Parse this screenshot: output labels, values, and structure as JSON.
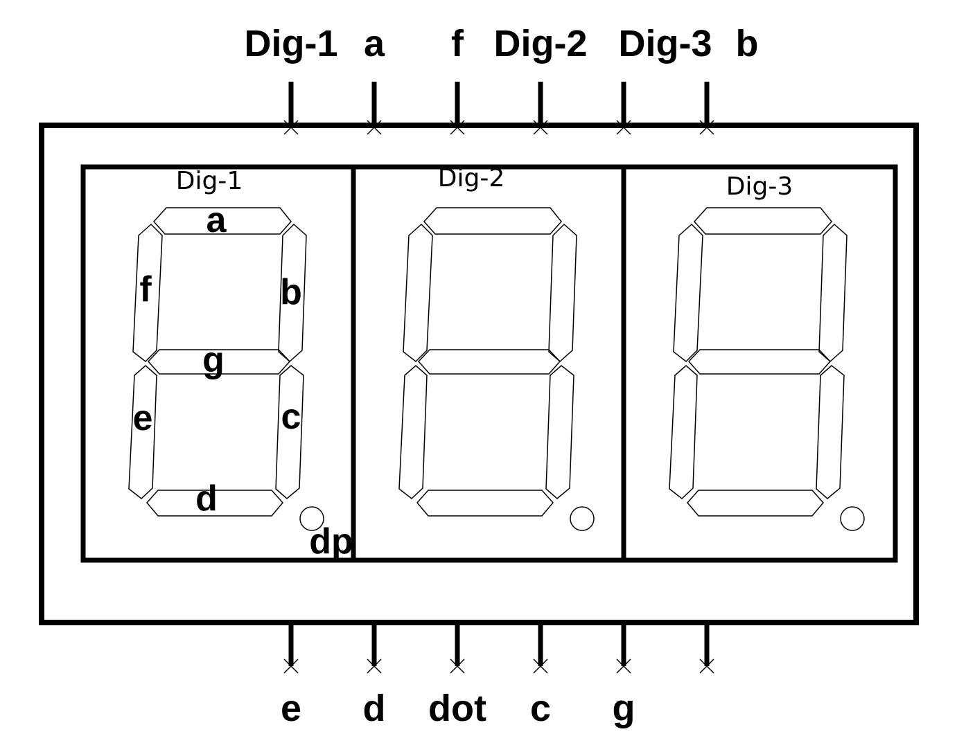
{
  "top_pins": [
    {
      "label": "Dig-1"
    },
    {
      "label": "a"
    },
    {
      "label": "f"
    },
    {
      "label": "Dig-2"
    },
    {
      "label": "Dig-3"
    },
    {
      "label": "b"
    }
  ],
  "bottom_pins": [
    {
      "label": "e"
    },
    {
      "label": "d"
    },
    {
      "label": "dot"
    },
    {
      "label": "c"
    },
    {
      "label": "g"
    },
    {
      "label": ""
    }
  ],
  "digits": [
    {
      "title": "Dig-1"
    },
    {
      "title": "Dig-2"
    },
    {
      "title": "Dig-3"
    }
  ],
  "segment_labels": {
    "a": "a",
    "b": "b",
    "c": "c",
    "d": "d",
    "e": "e",
    "f": "f",
    "g": "g",
    "dp": "dp"
  },
  "colors": {
    "stroke": "#000000",
    "background": "#ffffff"
  }
}
